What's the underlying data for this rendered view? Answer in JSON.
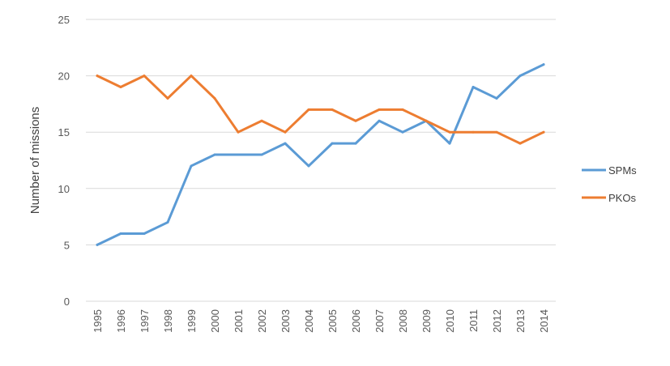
{
  "chart_data": {
    "type": "line",
    "title": "",
    "xlabel": "",
    "ylabel": "Number of missions",
    "categories": [
      "1995",
      "1996",
      "1997",
      "1998",
      "1999",
      "2000",
      "2001",
      "2002",
      "2003",
      "2004",
      "2005",
      "2006",
      "2007",
      "2008",
      "2009",
      "2010",
      "2011",
      "2012",
      "2013",
      "2014"
    ],
    "yticks": [
      "0",
      "5",
      "10",
      "15",
      "20",
      "25"
    ],
    "ylim": [
      0,
      25
    ],
    "grid": true,
    "legend_position": "right",
    "series": [
      {
        "name": "SPMs",
        "color": "#5b9bd5",
        "values": [
          5,
          6,
          6,
          7,
          12,
          13,
          13,
          13,
          14,
          12,
          14,
          14,
          16,
          15,
          16,
          14,
          19,
          18,
          20,
          21
        ]
      },
      {
        "name": "PKOs",
        "color": "#ed7d31",
        "values": [
          20,
          19,
          20,
          18,
          20,
          18,
          15,
          16,
          15,
          17,
          17,
          16,
          17,
          17,
          16,
          15,
          15,
          15,
          14,
          15
        ]
      }
    ]
  }
}
